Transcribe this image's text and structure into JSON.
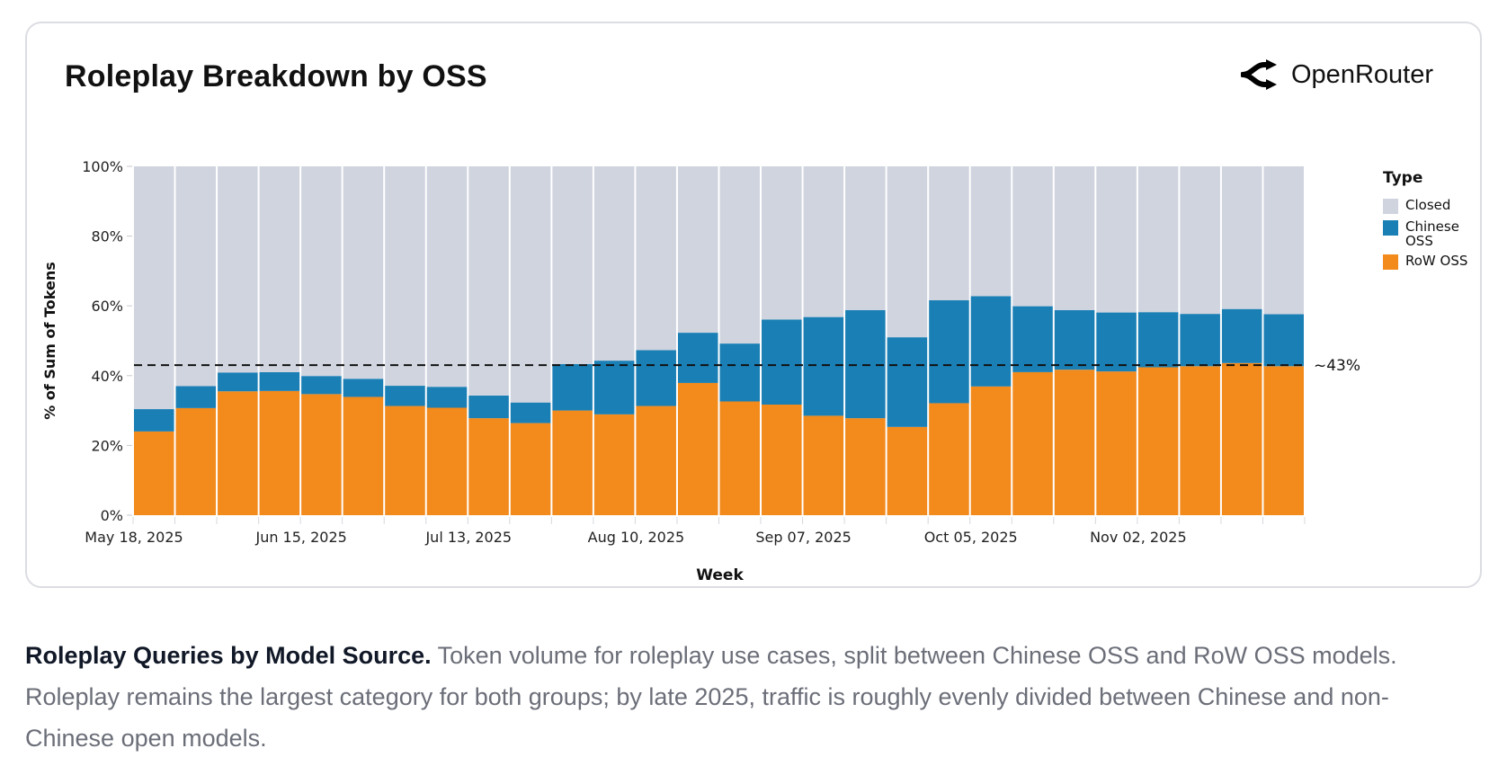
{
  "card": {
    "title": "Roleplay Breakdown by OSS",
    "brand": {
      "name": "OpenRouter",
      "icon": "openrouter-logo-icon"
    }
  },
  "caption": {
    "lead": "Roleplay Queries by Model Source.",
    "body": " Token volume for roleplay use cases, split between Chinese OSS and RoW OSS models. Roleplay remains the largest category for both groups; by late 2025, traffic is roughly evenly divided between Chinese and non-Chinese open models."
  },
  "legend": {
    "title": "Type",
    "items": [
      {
        "label": "Closed",
        "color": "#d0d4df"
      },
      {
        "label": "Chinese OSS",
        "color": "#1a7fb5"
      },
      {
        "label": "RoW OSS",
        "color": "#f28a1c"
      }
    ]
  },
  "chart_data": {
    "type": "bar",
    "stacked": true,
    "normalized": true,
    "title": "Roleplay Breakdown by OSS",
    "xlabel": "Week",
    "ylabel": "% of Sum of Tokens",
    "ylim": [
      0,
      100
    ],
    "yticks": [
      "0%",
      "20%",
      "40%",
      "60%",
      "80%",
      "100%"
    ],
    "ytick_values": [
      0,
      20,
      40,
      60,
      80,
      100
    ],
    "x": [
      "2025-05-18",
      "2025-05-25",
      "2025-06-01",
      "2025-06-08",
      "2025-06-15",
      "2025-06-22",
      "2025-06-29",
      "2025-07-06",
      "2025-07-13",
      "2025-07-20",
      "2025-07-27",
      "2025-08-03",
      "2025-08-10",
      "2025-08-17",
      "2025-08-24",
      "2025-08-31",
      "2025-09-07",
      "2025-09-14",
      "2025-09-21",
      "2025-09-28",
      "2025-10-05",
      "2025-10-12",
      "2025-10-19",
      "2025-10-26",
      "2025-11-02",
      "2025-11-09",
      "2025-11-16",
      "2025-11-23"
    ],
    "xtick_labels": [
      {
        "index": 0,
        "label": "May 18, 2025"
      },
      {
        "index": 4,
        "label": "Jun 15, 2025"
      },
      {
        "index": 8,
        "label": "Jul 13, 2025"
      },
      {
        "index": 12,
        "label": "Aug 10, 2025"
      },
      {
        "index": 16,
        "label": "Sep 07, 2025"
      },
      {
        "index": 20,
        "label": "Oct 05, 2025"
      },
      {
        "index": 24,
        "label": "Nov 02, 2025"
      }
    ],
    "series": [
      {
        "name": "RoW OSS",
        "color": "#f28a1c",
        "values": [
          24.0,
          30.7,
          35.5,
          35.6,
          34.7,
          33.9,
          31.3,
          30.8,
          27.8,
          26.4,
          30.0,
          28.9,
          31.3,
          37.9,
          32.6,
          31.7,
          28.5,
          27.8,
          25.3,
          32.1,
          36.9,
          41.0,
          41.7,
          41.2,
          42.4,
          42.7,
          43.6,
          42.7
        ]
      },
      {
        "name": "Chinese OSS",
        "color": "#1a7fb5",
        "values": [
          6.4,
          6.3,
          5.4,
          5.4,
          5.2,
          5.2,
          5.8,
          6.0,
          6.5,
          5.9,
          13.3,
          15.4,
          16.0,
          14.4,
          16.6,
          24.4,
          28.3,
          31.0,
          25.7,
          29.5,
          25.9,
          18.9,
          17.1,
          16.9,
          15.8,
          15.0,
          15.5,
          14.9
        ]
      },
      {
        "name": "Closed",
        "color": "#d0d4df",
        "values": [
          69.6,
          63.0,
          59.1,
          59.0,
          60.1,
          60.9,
          62.9,
          63.2,
          65.7,
          67.7,
          56.7,
          55.7,
          52.7,
          47.7,
          50.8,
          43.9,
          43.2,
          41.2,
          49.0,
          38.4,
          37.2,
          40.1,
          41.2,
          41.9,
          41.8,
          42.3,
          40.9,
          42.4
        ]
      }
    ],
    "reference_line": {
      "value": 43,
      "label": "~43%",
      "style": "dashed"
    },
    "legend": {
      "title": "Type",
      "position": "right"
    },
    "grid": false
  }
}
